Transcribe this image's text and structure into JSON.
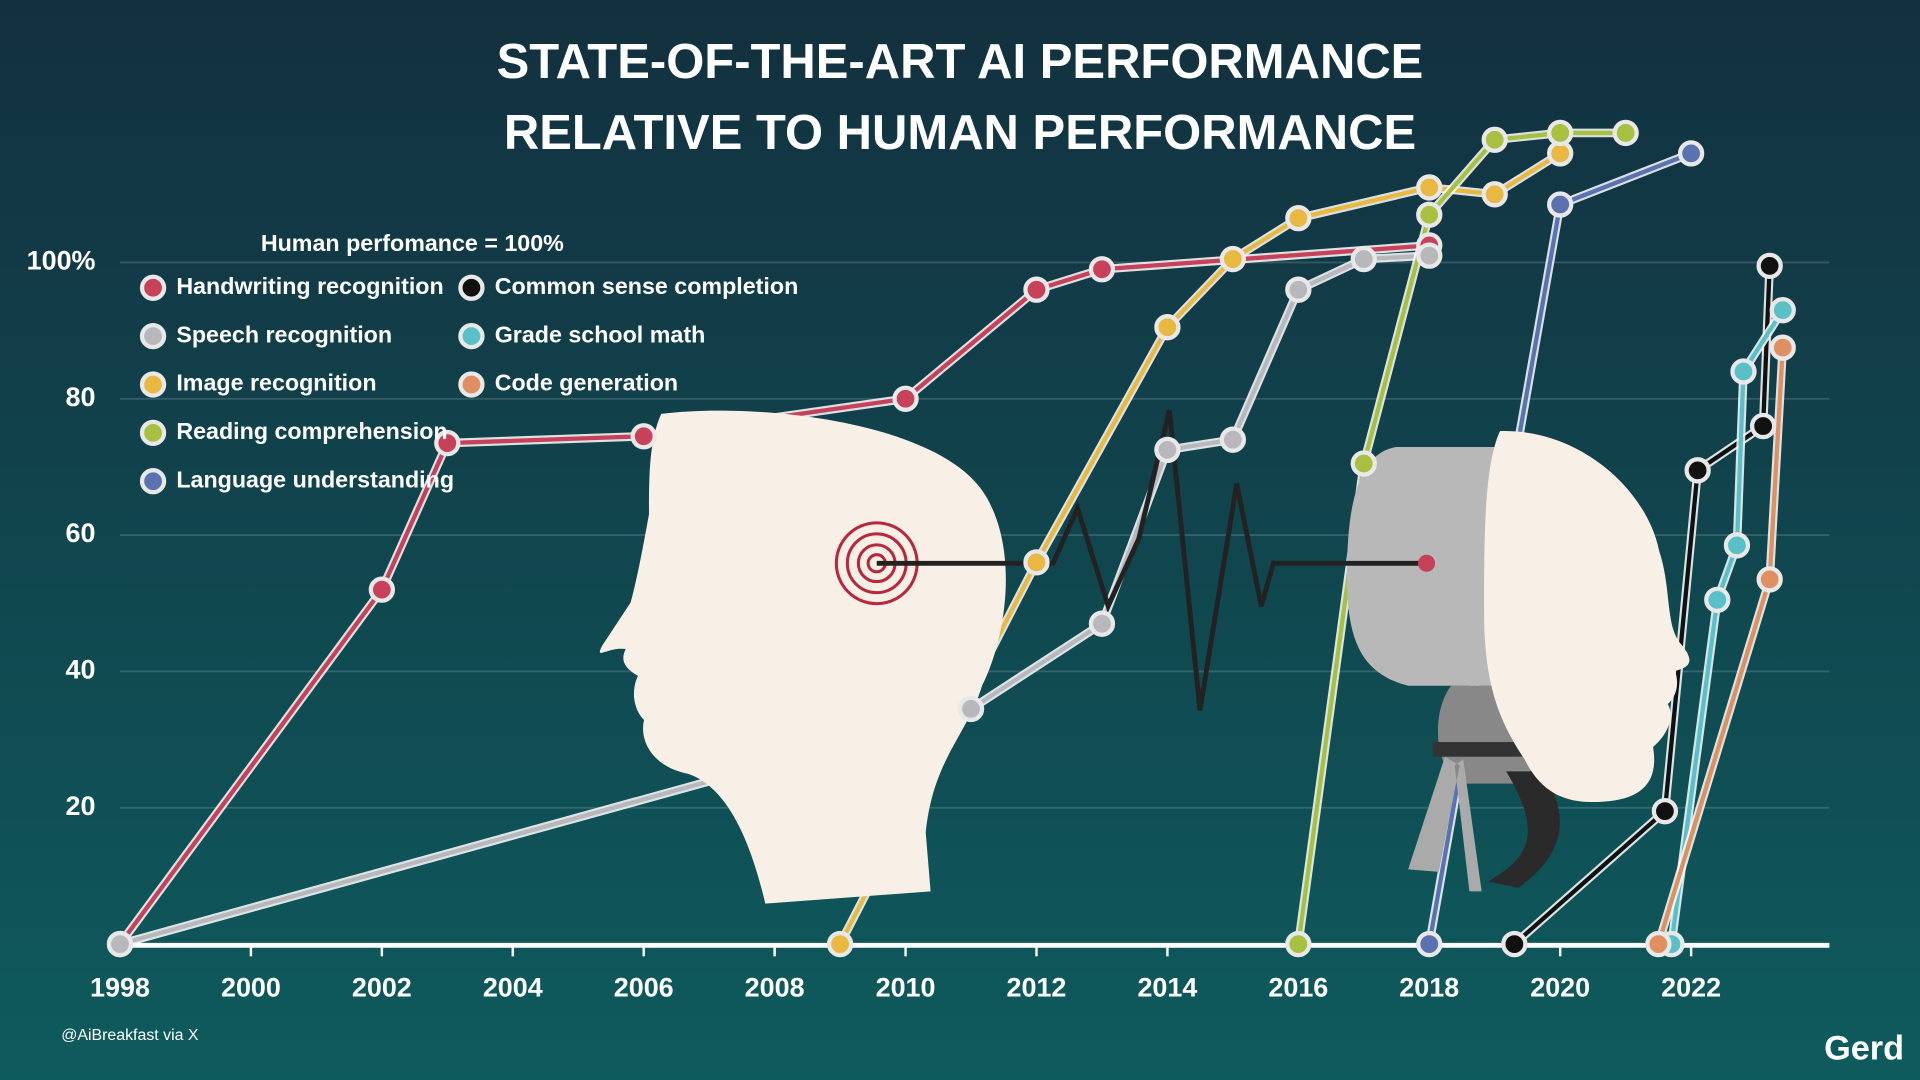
{
  "chart_data": {
    "type": "line",
    "title": [
      "STATE-OF-THE-ART AI PERFORMANCE",
      "RELATIVE TO HUMAN PERFORMANCE"
    ],
    "legend_title": "Human perfomance = 100%",
    "source": "@AiBreakfast via X",
    "brand": "Gerd",
    "xlim": [
      1998,
      2024
    ],
    "xticks": [
      1998,
      2000,
      2002,
      2004,
      2006,
      2008,
      2010,
      2012,
      2014,
      2016,
      2018,
      2020,
      2022
    ],
    "ylim": [
      0,
      120
    ],
    "yticks": [
      20,
      40,
      60,
      80,
      {
        "value": 100,
        "label": "100%"
      }
    ],
    "grid": true,
    "legend": "upper left",
    "series": [
      {
        "name": "Handwriting recognition",
        "color": "#c8415a",
        "x": [
          1998,
          2002,
          2003,
          2006,
          2010,
          2012,
          2013,
          2018
        ],
        "values": [
          0,
          52,
          73.5,
          74.5,
          80,
          96,
          99,
          102.5
        ]
      },
      {
        "name": "Speech recognition",
        "color": "#b8b8bc",
        "x": [
          1998,
          2011,
          2013,
          2014,
          2015,
          2016,
          2017,
          2018
        ],
        "values": [
          0,
          34.5,
          47,
          72.5,
          74,
          96,
          100.5,
          101
        ]
      },
      {
        "name": "Image recognition",
        "color": "#e8b840",
        "x": [
          2009,
          2012,
          2014,
          2015,
          2016,
          2018,
          2019,
          2020
        ],
        "values": [
          0,
          56,
          90.5,
          100.5,
          106.5,
          111,
          110,
          116
        ]
      },
      {
        "name": "Reading comprehension",
        "color": "#a8c040",
        "x": [
          2016,
          2017,
          2018,
          2019,
          2020,
          2021
        ],
        "values": [
          0,
          70.5,
          107,
          118,
          119,
          119
        ]
      },
      {
        "name": "Language understanding",
        "color": "#5a72b0",
        "x": [
          2018,
          2020,
          2022
        ],
        "values": [
          0,
          108.5,
          116
        ]
      },
      {
        "name": "Common sense completion",
        "color": "#111111",
        "x": [
          2019.3,
          2021.6,
          2022.1,
          2023.1,
          2023.2
        ],
        "values": [
          0,
          19.5,
          69.5,
          76,
          99.5
        ]
      },
      {
        "name": "Grade school math",
        "color": "#5ac0c8",
        "x": [
          2021.7,
          2022.4,
          2022.7,
          2022.8,
          2023.4
        ],
        "values": [
          0,
          50.5,
          58.5,
          84,
          93
        ]
      },
      {
        "name": "Code generation",
        "color": "#e09060",
        "x": [
          2021.5,
          2023.2,
          2023.4
        ],
        "values": [
          0,
          53.5,
          87.5
        ]
      }
    ]
  }
}
